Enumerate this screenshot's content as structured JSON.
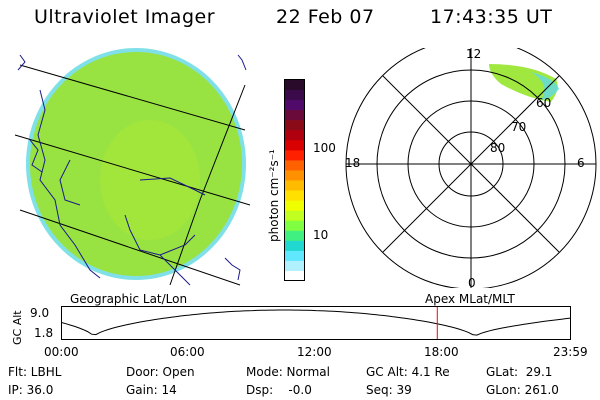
{
  "header": {
    "instrument": "Ultraviolet Imager",
    "date": "22 Feb 07",
    "time": "17:43:35 UT"
  },
  "colorbar": {
    "unit_label": "photon cm⁻²s⁻¹",
    "tick_labels": [
      "100",
      "10"
    ],
    "colors": [
      "#2a0a2a",
      "#3a0a4a",
      "#500a6a",
      "#6a0a3a",
      "#8a0a18",
      "#b00010",
      "#d80000",
      "#ff2000",
      "#ff6000",
      "#ff9000",
      "#ffbb00",
      "#ffe000",
      "#f0ff00",
      "#c0ff20",
      "#80ff40",
      "#40f080",
      "#20d8d0",
      "#60e8ff",
      "#b0f0ff",
      "#ffffff"
    ]
  },
  "map_panel": {
    "label": "Geographic Lat/Lon",
    "disk_color": "#8fe048"
  },
  "polar_panel": {
    "label": "Apex MLat/MLT",
    "mlt_labels": [
      "12",
      "18",
      "6",
      "0"
    ],
    "lat_labels": [
      "60",
      "70",
      "80"
    ]
  },
  "altitude_plot": {
    "ylabel": "GC Alt",
    "y_ticks": [
      "9.0",
      "1.8"
    ],
    "x_ticks": [
      "00:00",
      "06:00",
      "12:00",
      "18:00",
      "23:59"
    ],
    "current_time_marker_hours": 17.73,
    "marker_color": "#ff0000"
  },
  "footer": {
    "flt": "Flt: LBHL",
    "ip": "IP: 36.0",
    "door": "Door: Open",
    "gain": "Gain: 14",
    "mode": "Mode: Normal",
    "dsp": "Dsp:    -0.0",
    "gc_alt": "GC Alt: 4.1 Re",
    "seq": "Seq: 39",
    "glat": "GLat:  29.1",
    "glon": "GLon: 261.0"
  }
}
